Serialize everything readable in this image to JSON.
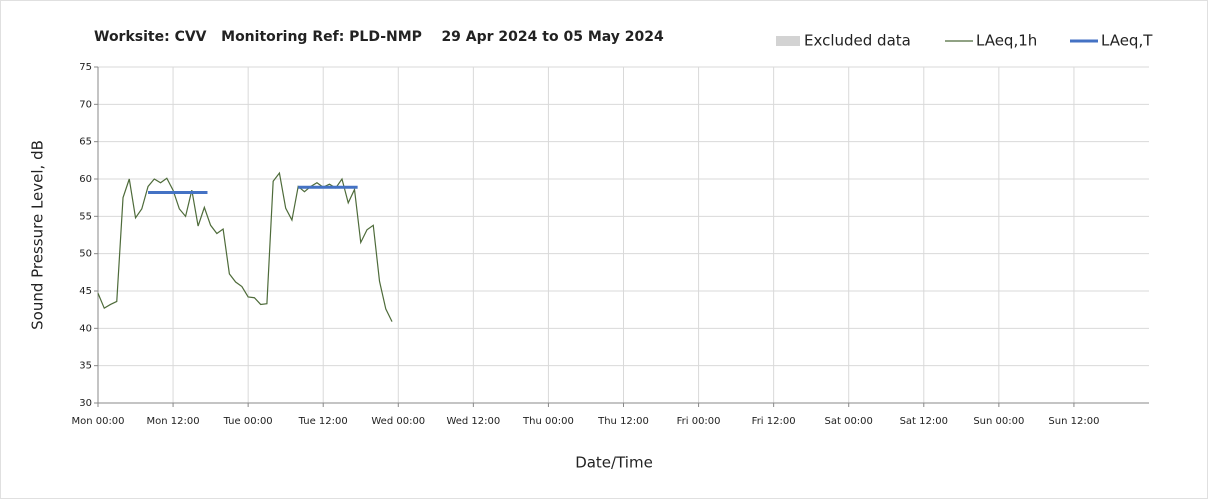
{
  "chart_data": {
    "type": "line",
    "title": "Worksite: CVV   Monitoring Ref: PLD-NMP    29 Apr 2024 to 05 May 2024",
    "xlabel": "Date/Time",
    "ylabel": "Sound Pressure Level, dB",
    "xlim": [
      0,
      168
    ],
    "ylim": [
      30,
      75
    ],
    "xticks": [
      {
        "value": 0,
        "label": "Mon 00:00"
      },
      {
        "value": 12,
        "label": "Mon 12:00"
      },
      {
        "value": 24,
        "label": "Tue 00:00"
      },
      {
        "value": 36,
        "label": "Tue 12:00"
      },
      {
        "value": 48,
        "label": "Wed 00:00"
      },
      {
        "value": 60,
        "label": "Wed 12:00"
      },
      {
        "value": 72,
        "label": "Thu 00:00"
      },
      {
        "value": 84,
        "label": "Thu 12:00"
      },
      {
        "value": 96,
        "label": "Fri 00:00"
      },
      {
        "value": 108,
        "label": "Fri 12:00"
      },
      {
        "value": 120,
        "label": "Sat 00:00"
      },
      {
        "value": 132,
        "label": "Sat 12:00"
      },
      {
        "value": 144,
        "label": "Sun 00:00"
      },
      {
        "value": 156,
        "label": "Sun 12:00"
      }
    ],
    "yticks": [
      30,
      35,
      40,
      45,
      50,
      55,
      60,
      65,
      70,
      75
    ],
    "grid": true,
    "legend": "top-right",
    "series": [
      {
        "name": "Excluded data",
        "color": "#d3d3d3",
        "x": [],
        "values": []
      },
      {
        "name": "LAeq,1h",
        "color": "#4e6b3a",
        "x": [
          0,
          1,
          2,
          3,
          4,
          5,
          6,
          7,
          8,
          9,
          10,
          11,
          12,
          13,
          14,
          15,
          16,
          17,
          18,
          19,
          20,
          21,
          22,
          23,
          24,
          25,
          26,
          27,
          28,
          29,
          30,
          31,
          32,
          33,
          34,
          35,
          36,
          37,
          38,
          39,
          40,
          41,
          42,
          43,
          44,
          45,
          46,
          47
        ],
        "values": [
          44.7,
          42.7,
          43.2,
          43.6,
          57.5,
          60,
          54.8,
          56,
          59,
          60,
          59.5,
          60.1,
          58.5,
          56,
          55,
          58.5,
          53.7,
          56.2,
          53.8,
          52.7,
          53.3,
          47.3,
          46.2,
          45.6,
          44.2,
          44.1,
          43.2,
          43.3,
          59.7,
          60.8,
          56.1,
          54.5,
          59,
          58.3,
          59,
          59.5,
          58.9,
          59.3,
          58.8,
          60,
          56.8,
          58.6,
          51.5,
          53.2,
          53.8,
          46.3,
          42.6,
          40.9
        ]
      },
      {
        "name": "LAeq,T",
        "color": "#4472c4",
        "x": [
          8,
          17.5,
          32,
          32,
          41.5
        ],
        "values": [
          58.2,
          58.2,
          null,
          58.9,
          58.9
        ]
      }
    ]
  }
}
